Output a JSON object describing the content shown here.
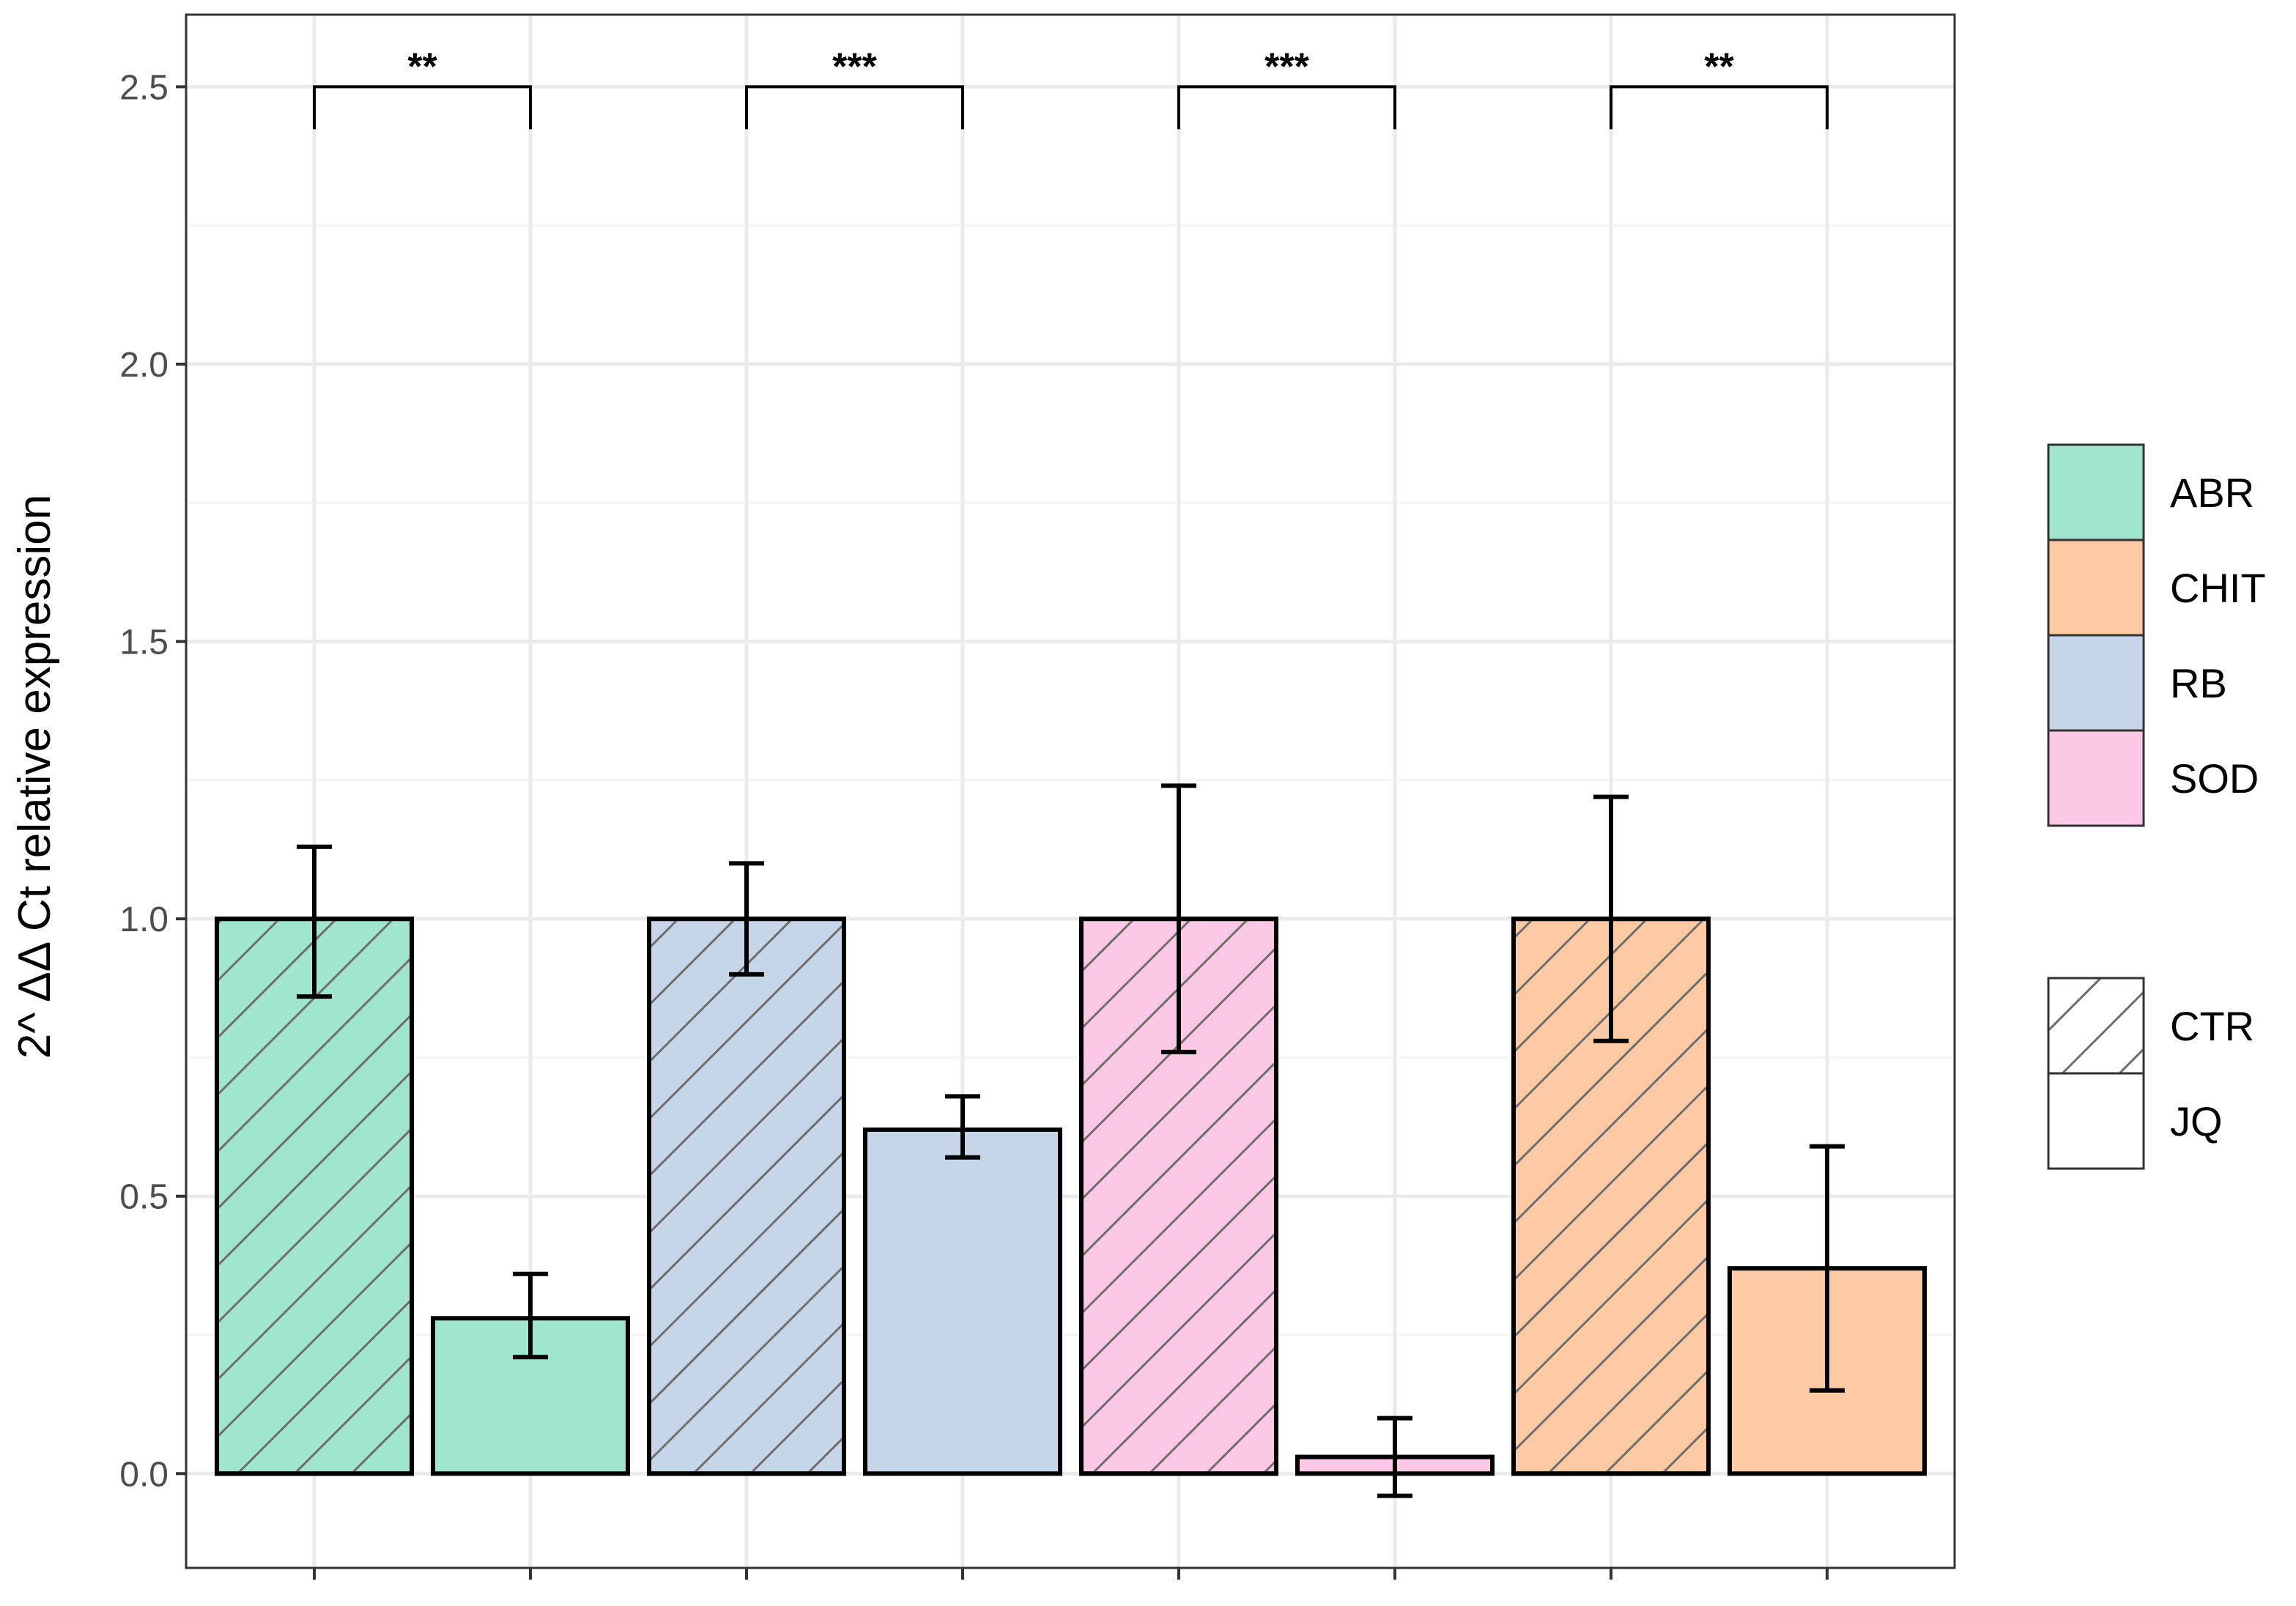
{
  "chart_data": {
    "type": "bar",
    "title": "",
    "xlabel": "",
    "ylabel": "2^ ΔΔ Ct relative expression",
    "ylim": [
      -0.17,
      2.63
    ],
    "yticks": [
      0.0,
      0.5,
      1.0,
      1.5,
      2.0,
      2.5
    ],
    "ytick_labels": [
      "0.0",
      "0.5",
      "1.0",
      "1.5",
      "2.0",
      "2.5"
    ],
    "grid": true,
    "legend_position": "right",
    "bars": [
      {
        "gene": "ABR",
        "treatment": "CTR",
        "value": 1.0,
        "err_low": 0.86,
        "err_high": 1.13
      },
      {
        "gene": "ABR",
        "treatment": "JQ",
        "value": 0.28,
        "err_low": 0.21,
        "err_high": 0.36
      },
      {
        "gene": "RB",
        "treatment": "CTR",
        "value": 1.0,
        "err_low": 0.9,
        "err_high": 1.1
      },
      {
        "gene": "RB",
        "treatment": "JQ",
        "value": 0.62,
        "err_low": 0.57,
        "err_high": 0.68
      },
      {
        "gene": "SOD",
        "treatment": "CTR",
        "value": 1.0,
        "err_low": 0.76,
        "err_high": 1.24
      },
      {
        "gene": "SOD",
        "treatment": "JQ",
        "value": 0.03,
        "err_low": -0.04,
        "err_high": 0.1
      },
      {
        "gene": "CHIT",
        "treatment": "CTR",
        "value": 1.0,
        "err_low": 0.78,
        "err_high": 1.22
      },
      {
        "gene": "CHIT",
        "treatment": "JQ",
        "value": 0.37,
        "err_low": 0.15,
        "err_high": 0.59
      }
    ],
    "significance": [
      {
        "from_bar": 0,
        "to_bar": 1,
        "label": "**",
        "y": 2.5
      },
      {
        "from_bar": 2,
        "to_bar": 3,
        "label": "***",
        "y": 2.5
      },
      {
        "from_bar": 4,
        "to_bar": 5,
        "label": "***",
        "y": 2.5
      },
      {
        "from_bar": 6,
        "to_bar": 7,
        "label": "**",
        "y": 2.5
      }
    ],
    "legend_fill": {
      "entries": [
        {
          "label": "ABR",
          "color": "#9fe5cf"
        },
        {
          "label": "CHIT",
          "color": "#fdcaa3"
        },
        {
          "label": "RB",
          "color": "#c6d5e8"
        },
        {
          "label": "SOD",
          "color": "#fdc8e6"
        }
      ]
    },
    "legend_pattern": {
      "entries": [
        {
          "label": "CTR",
          "pattern": "stripe"
        },
        {
          "label": "JQ",
          "pattern": "none"
        }
      ]
    },
    "colors": {
      "ABR": "#9fe5cf",
      "CHIT": "#fdcaa3",
      "RB": "#c6d5e8",
      "SOD": "#fdc8e6",
      "grid_major": "#ebebeb",
      "grid_minor": "#f5f5f5",
      "panel_border": "#333333",
      "stripe": "#6e6e6e"
    }
  }
}
